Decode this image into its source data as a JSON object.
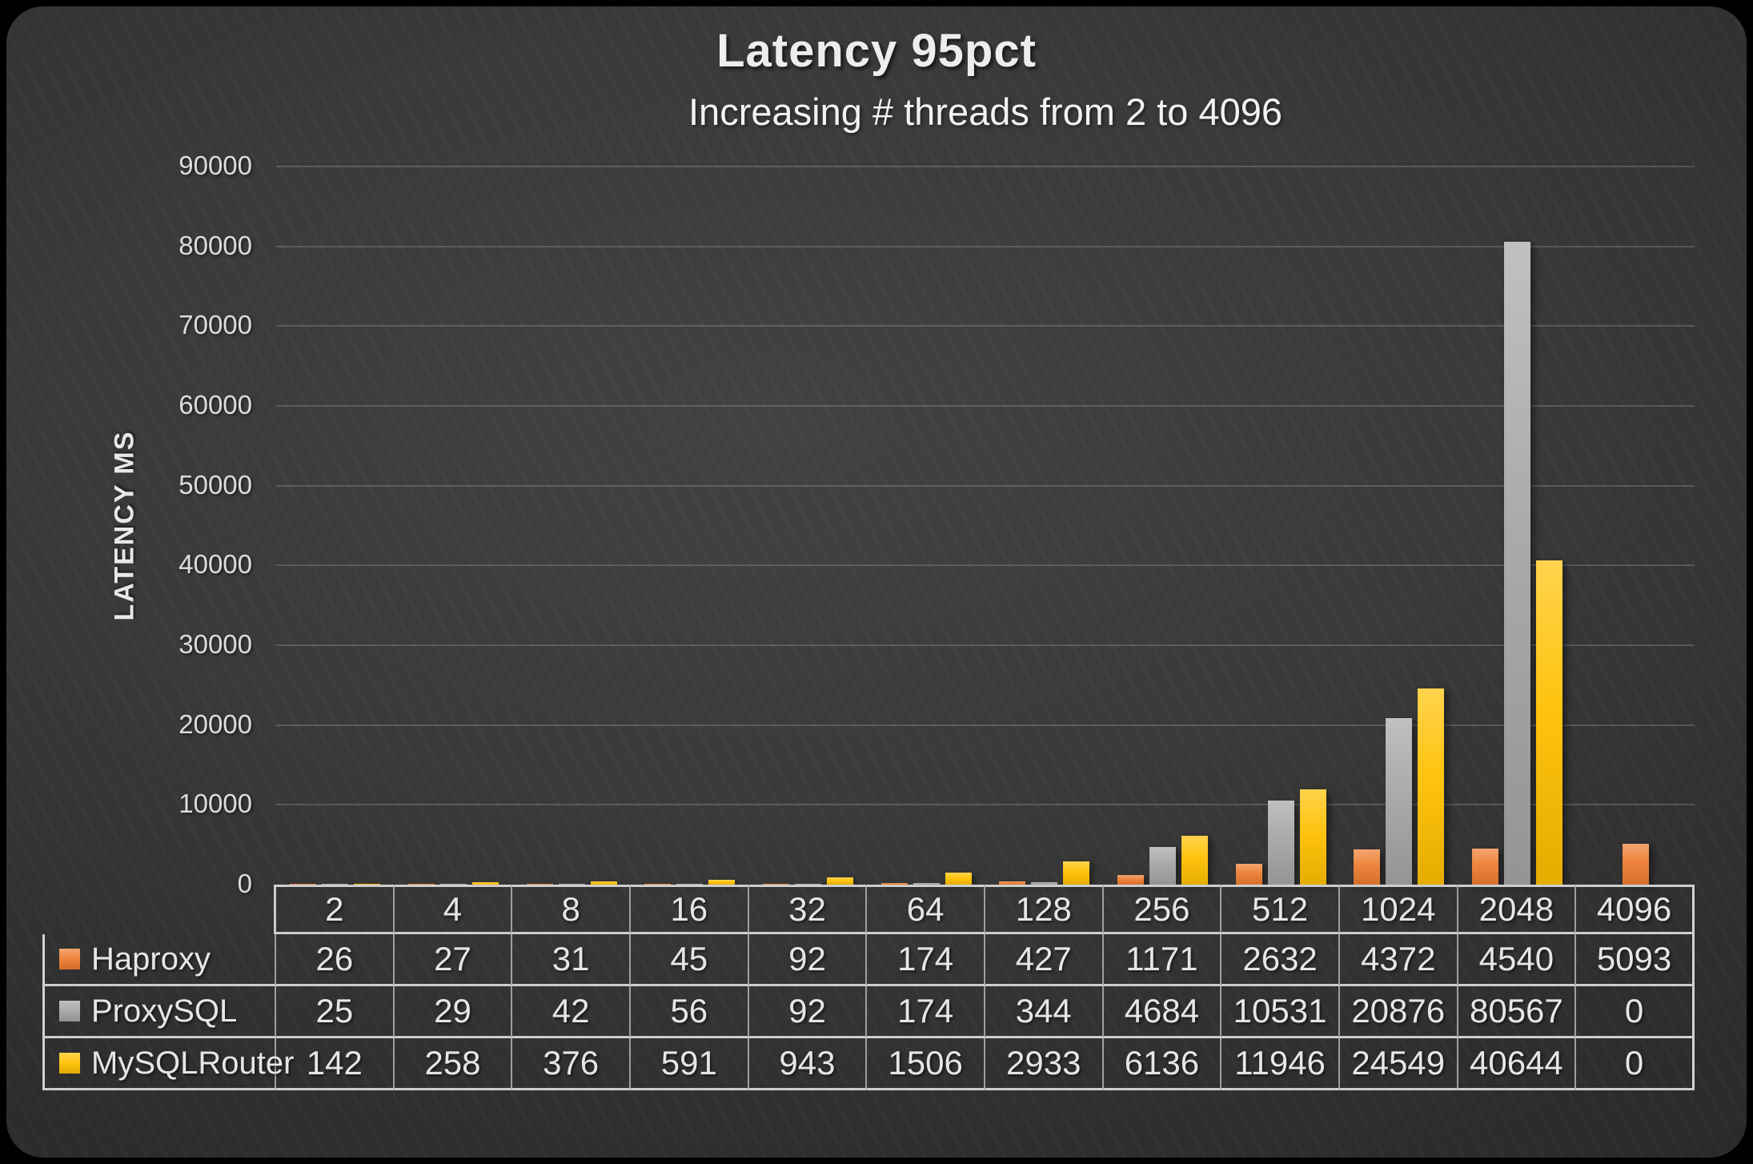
{
  "chart_data": {
    "type": "bar",
    "title": "Latency 95pct",
    "subtitle": "Increasing # threads from 2 to 4096",
    "ylabel": "LATENCY MS",
    "ylim": [
      0,
      90000
    ],
    "yticks": [
      0,
      10000,
      20000,
      30000,
      40000,
      50000,
      60000,
      70000,
      80000,
      90000
    ],
    "grid": true,
    "legend_position": "table-left",
    "categories": [
      "2",
      "4",
      "8",
      "16",
      "32",
      "64",
      "128",
      "256",
      "512",
      "1024",
      "2048",
      "4096"
    ],
    "series": [
      {
        "name": "Haproxy",
        "color": "#ED7D31",
        "values": [
          26,
          27,
          31,
          45,
          92,
          174,
          427,
          1171,
          2632,
          4372,
          4540,
          5093
        ]
      },
      {
        "name": "ProxySQL",
        "color": "#A5A5A5",
        "values": [
          25,
          29,
          42,
          56,
          92,
          174,
          344,
          4684,
          10531,
          20876,
          80567,
          0
        ]
      },
      {
        "name": "MySQLRouter",
        "color": "#FFC000",
        "values": [
          142,
          258,
          376,
          591,
          943,
          1506,
          2933,
          6136,
          11946,
          24549,
          40644,
          0
        ]
      }
    ]
  }
}
